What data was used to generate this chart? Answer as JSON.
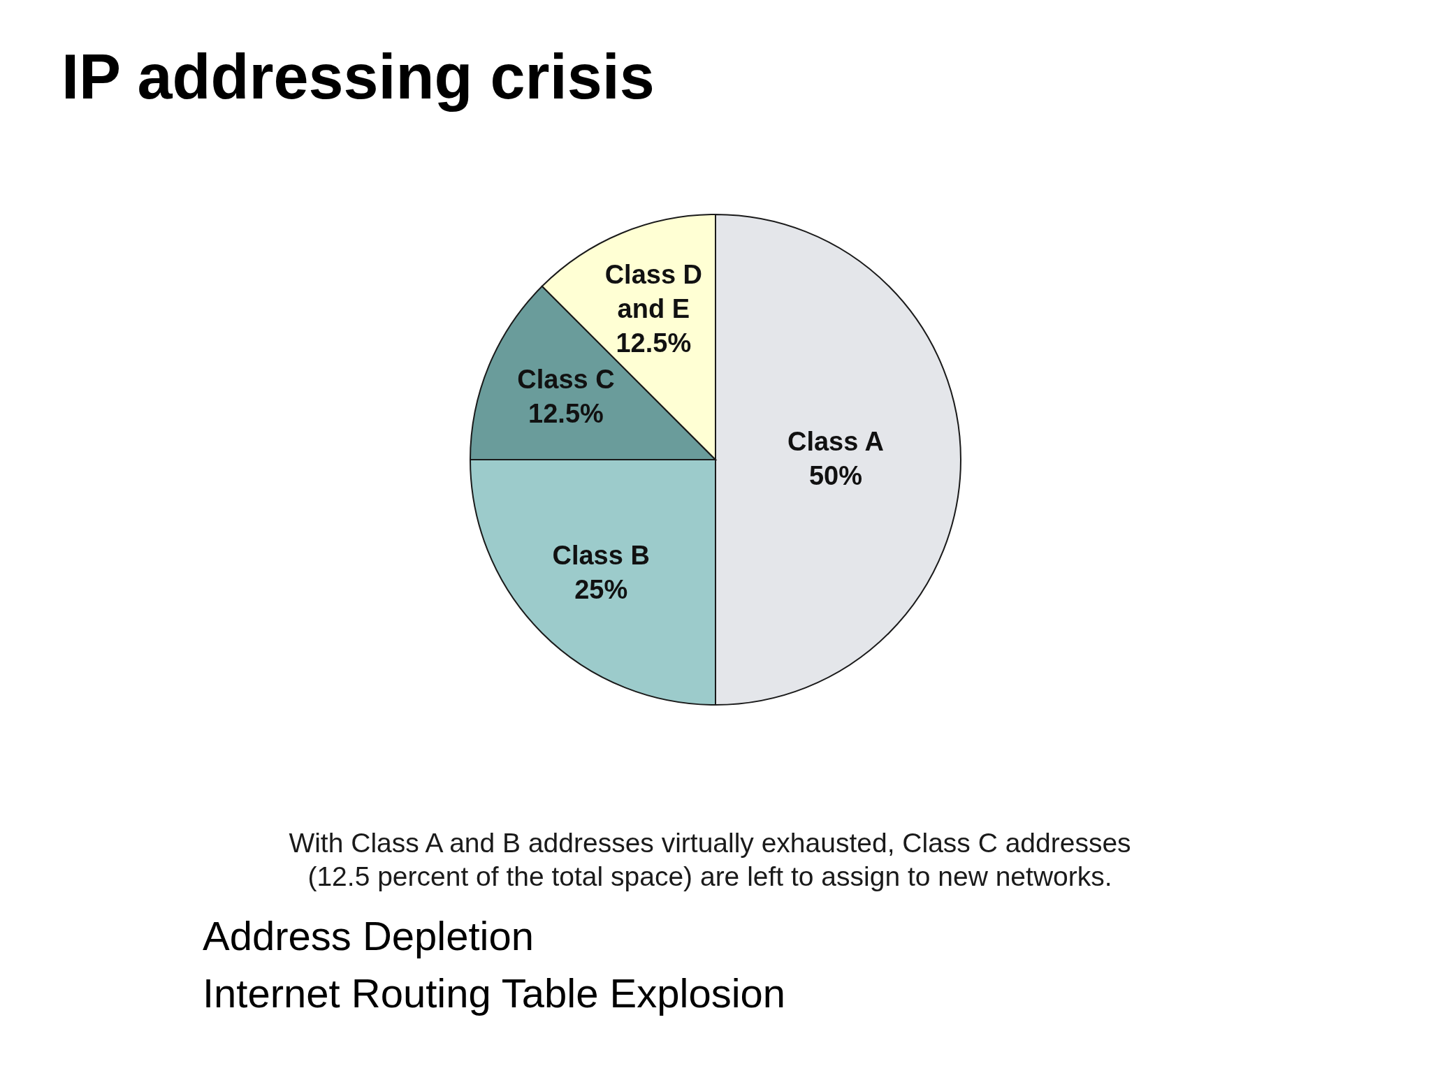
{
  "chart_data": {
    "type": "pie",
    "title": "IP addressing crisis",
    "categories": [
      "Class A",
      "Class B",
      "Class C",
      "Class D and E"
    ],
    "values": [
      50,
      25,
      12.5,
      12.5
    ],
    "colors": [
      "#e4e6ea",
      "#9ccbcb",
      "#6a9c9b",
      "#ffffd4"
    ],
    "value_labels": [
      "50%",
      "25%",
      "12.5%",
      "12.5%"
    ],
    "annotations": [
      "With Class A and B addresses virtually exhausted, Class C addresses (12.5 percent of the total space) are left to assign to new networks.",
      "Address Depletion",
      "Internet Routing Table Explosion"
    ]
  }
}
